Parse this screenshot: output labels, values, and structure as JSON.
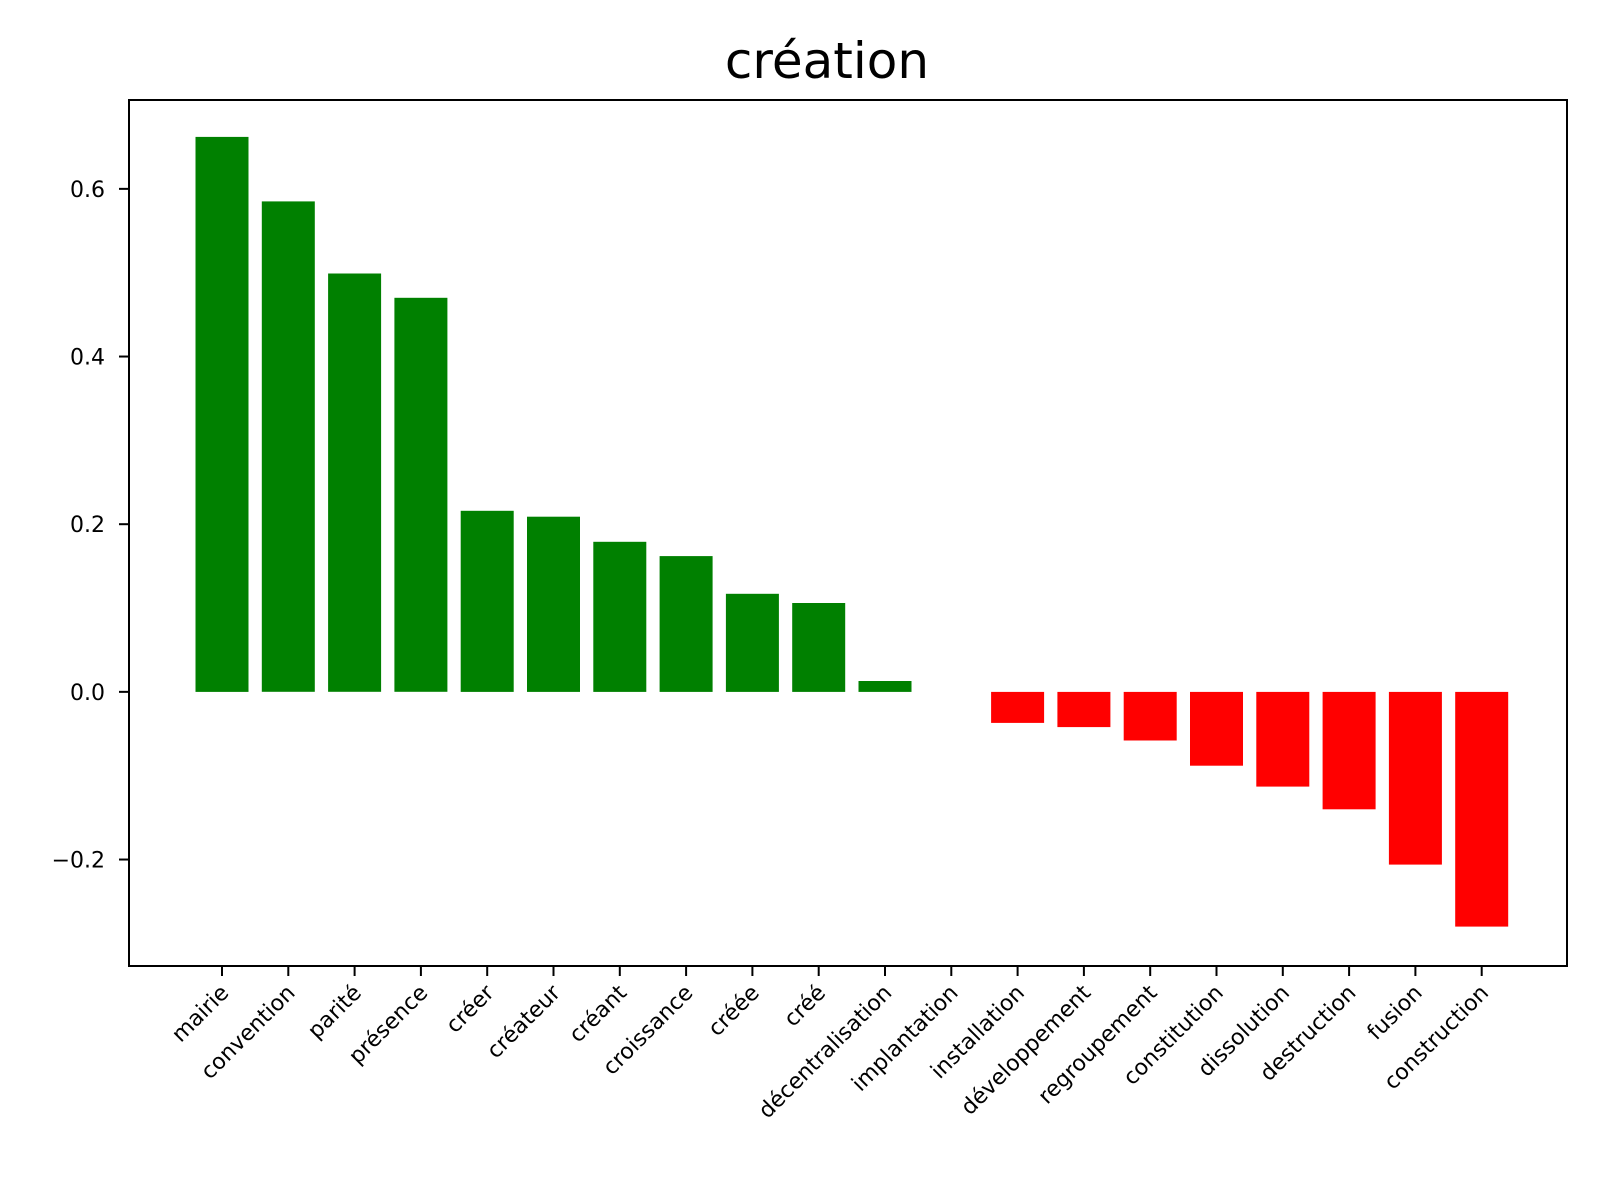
{
  "chart_data": {
    "type": "bar",
    "title": "création",
    "xlabel": "",
    "ylabel": "",
    "categories": [
      "mairie",
      "convention",
      "parité",
      "présence",
      "créer",
      "créateur",
      "créant",
      "croissance",
      "créée",
      "créé",
      "décentralisation",
      "implantation",
      "installation",
      "développement",
      "regroupement",
      "constitution",
      "dissolution",
      "destruction",
      "fusion",
      "construction"
    ],
    "values": [
      0.662,
      0.585,
      0.499,
      0.47,
      0.216,
      0.209,
      0.179,
      0.162,
      0.117,
      0.106,
      0.013,
      null,
      -0.037,
      -0.042,
      -0.058,
      -0.088,
      -0.113,
      -0.14,
      -0.206,
      -0.28
    ],
    "ylim": [
      -0.327,
      0.706
    ],
    "yticks": [
      -0.2,
      0.0,
      0.2,
      0.4,
      0.6
    ],
    "ytick_labels": [
      "−0.2",
      "0.0",
      "0.2",
      "0.4",
      "0.6"
    ],
    "grid": false,
    "legend": "none",
    "colors": {
      "positive": "#008000",
      "negative": "#ff0000"
    }
  }
}
